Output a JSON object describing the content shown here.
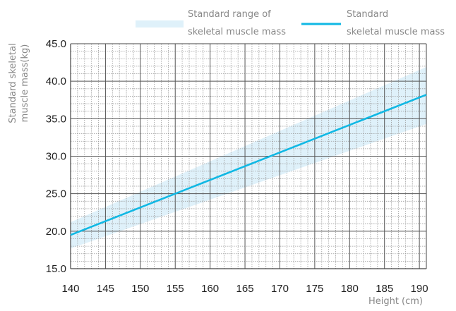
{
  "chart_data": {
    "type": "line",
    "xlabel": "Height (cm)",
    "ylabel_lines": [
      "Standard skeletal",
      "muscle mass(kg)"
    ],
    "xlim": [
      140,
      191
    ],
    "ylim": [
      15,
      45
    ],
    "x_ticks": [
      140,
      145,
      150,
      155,
      160,
      165,
      170,
      175,
      180,
      185,
      190
    ],
    "x_tick_labels": [
      "140",
      "145",
      "150",
      "155",
      "160",
      "165",
      "170",
      "175",
      "180",
      "185",
      "190"
    ],
    "y_ticks": [
      15,
      20,
      25,
      30,
      35,
      40,
      45
    ],
    "y_tick_labels": [
      "15.0",
      "20.0",
      "25.0",
      "30.0",
      "35.0",
      "40.0",
      "45.0"
    ],
    "grid": {
      "major_x_step": 5,
      "major_y_step": 5,
      "minor_x_step": 1,
      "minor_y_step": 1
    },
    "series": [
      {
        "kind": "band",
        "name_lines": [
          "Standard range of",
          "skeletal muscle mass"
        ],
        "x": [
          140,
          191
        ],
        "lower": [
          17.7,
          34.3
        ],
        "upper": [
          21.2,
          41.9
        ],
        "color": "#dff1fa"
      },
      {
        "kind": "line",
        "name_lines": [
          "Standard",
          "skeletal muscle mass"
        ],
        "x": [
          140,
          191
        ],
        "y": [
          19.5,
          38.2
        ],
        "color": "#10b8e4"
      }
    ],
    "legend_position": "top"
  },
  "colors": {
    "band": "#dff1fa",
    "line": "#10b8e4",
    "major_grid": "#555555",
    "minor_grid": "#9a9a9a",
    "axis_title": "#888888",
    "tick_label": "#222222"
  }
}
